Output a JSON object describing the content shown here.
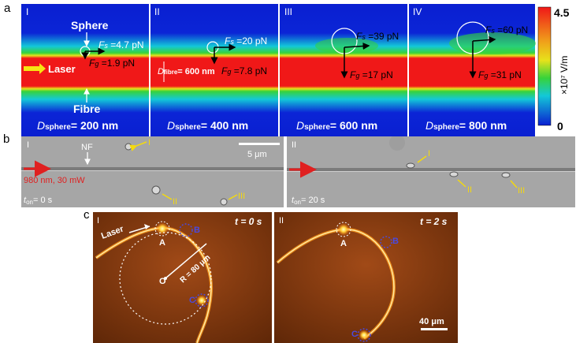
{
  "figure": {
    "panel_a": {
      "label": "a",
      "sub_panels": [
        {
          "roman": "I",
          "fs": "=4.7 pN",
          "fg": "=1.9 pN",
          "d_value": "= 200 nm",
          "sphere_label": "Sphere",
          "fibre_label": "Fibre",
          "laser_label": "Laser"
        },
        {
          "roman": "II",
          "fs": "=20 pN",
          "fg": "=7.8 pN",
          "d_value": "= 400 nm",
          "fibre_d": "= 600 nm"
        },
        {
          "roman": "III",
          "fs": "=39 pN",
          "fg": "=17 pN",
          "d_value": "= 600 nm"
        },
        {
          "roman": "IV",
          "fs": "=60 pN",
          "fg": "=31 pN",
          "d_value": "= 800 nm"
        }
      ],
      "colorbar": {
        "max": "4.5",
        "min": "0",
        "unit": "×10⁷ V/m",
        "colors": [
          "#0a1fd1",
          "#13c8d8",
          "#37d33a",
          "#e7e21b",
          "#f01818"
        ]
      }
    },
    "panel_b": {
      "label": "b",
      "left": {
        "roman": "I",
        "nf": "NF",
        "laser": "980 nm, 30 mW",
        "time": "= 0 s",
        "scale": "5 μm",
        "markers": [
          "I",
          "II",
          "III"
        ]
      },
      "right": {
        "roman": "II",
        "time": "= 20 s",
        "markers": [
          "I",
          "II",
          "III"
        ]
      }
    },
    "panel_c": {
      "label": "c",
      "left": {
        "roman": "I",
        "time": "t = 0 s",
        "laser": "Laser",
        "a": "A",
        "b": "B",
        "c": "C",
        "o": "O",
        "radius": "R = 80 μm"
      },
      "right": {
        "roman": "II",
        "time": "t = 2 s",
        "a": "A",
        "b": "B",
        "c": "C",
        "scale": "40 μm"
      }
    }
  }
}
